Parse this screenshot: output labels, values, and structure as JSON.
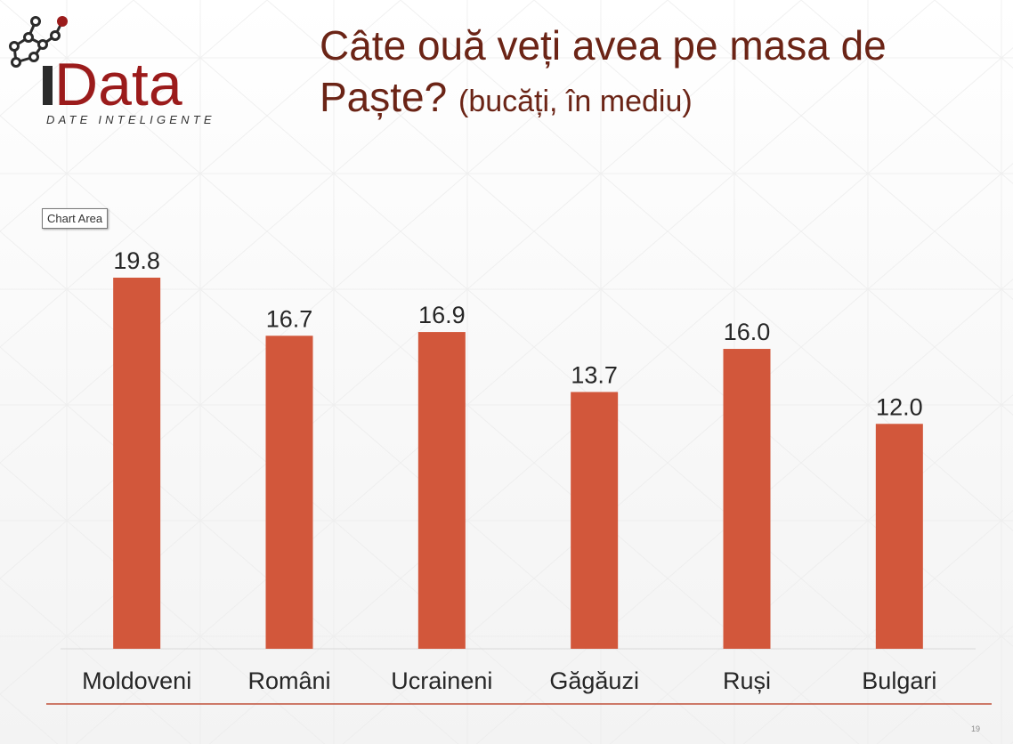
{
  "header": {
    "title_main": "Câte ouă veți avea pe masa de Paște?",
    "title_sub": "(bucăți, în mediu)"
  },
  "logo": {
    "wordmark": "iData",
    "tagline": "DATE INTELIGENTE",
    "colors": {
      "dark": "#2b2b2b",
      "accent": "#9b1b1b"
    }
  },
  "tooltip": {
    "label": "Chart Area"
  },
  "chart_data": {
    "type": "bar",
    "categories": [
      "Moldoveni",
      "Români",
      "Ucraineni",
      "Găgăuzi",
      "Ruși",
      "Bulgari"
    ],
    "values": [
      19.8,
      16.7,
      16.9,
      13.7,
      16.0,
      12.0
    ],
    "value_labels": [
      "19.8",
      "16.7",
      "16.9",
      "13.7",
      "16.0",
      "12.0"
    ],
    "title": "Câte ouă veți avea pe masa de Paște? (bucăți, în mediu)",
    "xlabel": "",
    "ylabel": "",
    "ylim": [
      0,
      21
    ],
    "grid": false,
    "legend": "none",
    "bar_color": "#d2573b"
  },
  "footer": {
    "page_number": "19",
    "rule_color": "#c0503a"
  }
}
